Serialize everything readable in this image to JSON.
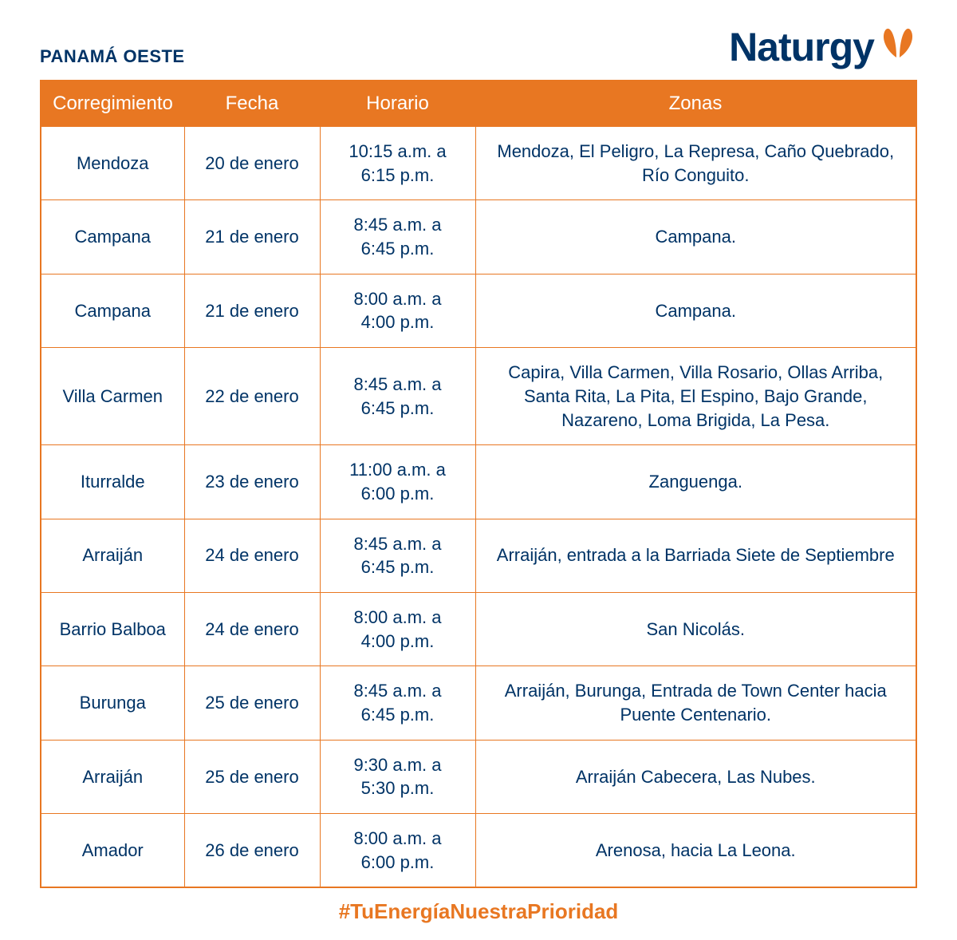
{
  "brand": {
    "name": "Naturgy",
    "text_color": "#003366",
    "icon_color": "#e87722"
  },
  "colors": {
    "header_bg": "#e87722",
    "header_text": "#ffffff",
    "border": "#e87722",
    "cell_text": "#003366",
    "hashtag": "#e87722"
  },
  "region_title": "PANAMÁ OESTE",
  "columns": [
    "Corregimiento",
    "Fecha",
    "Horario",
    "Zonas"
  ],
  "rows": [
    {
      "corr": "Mendoza",
      "fecha": "20 de enero",
      "horario": "10:15 a.m. a 6:15 p.m.",
      "zonas": "Mendoza, El Peligro, La Represa, Caño Quebrado, Río Conguito."
    },
    {
      "corr": "Campana",
      "fecha": "21 de enero",
      "horario": "8:45 a.m. a 6:45 p.m.",
      "zonas": "Campana."
    },
    {
      "corr": "Campana",
      "fecha": "21 de enero",
      "horario": "8:00 a.m. a 4:00 p.m.",
      "zonas": "Campana."
    },
    {
      "corr": "Villa Carmen",
      "fecha": "22 de enero",
      "horario": "8:45 a.m. a 6:45 p.m.",
      "zonas": "Capira, Villa Carmen, Villa Rosario, Ollas Arriba, Santa Rita, La Pita, El Espino, Bajo Grande, Nazareno, Loma Brigida, La Pesa."
    },
    {
      "corr": "Iturralde",
      "fecha": "23 de enero",
      "horario": "11:00 a.m. a 6:00 p.m.",
      "zonas": "Zanguenga."
    },
    {
      "corr": "Arraiján",
      "fecha": "24 de enero",
      "horario": "8:45 a.m. a 6:45 p.m.",
      "zonas": "Arraiján, entrada a la Barriada Siete de Septiembre"
    },
    {
      "corr": "Barrio Balboa",
      "fecha": "24 de enero",
      "horario": "8:00 a.m. a 4:00 p.m.",
      "zonas": "San Nicolás."
    },
    {
      "corr": "Burunga",
      "fecha": "25 de enero",
      "horario": "8:45 a.m. a 6:45 p.m.",
      "zonas": "Arraiján, Burunga, Entrada de Town Center hacia Puente Centenario."
    },
    {
      "corr": "Arraiján",
      "fecha": "25 de enero",
      "horario": "9:30 a.m. a 5:30 p.m.",
      "zonas": "Arraiján Cabecera, Las Nubes."
    },
    {
      "corr": "Amador",
      "fecha": "26 de enero",
      "horario": "8:00 a.m. a 6:00 p.m.",
      "zonas": "Arenosa, hacia La Leona."
    }
  ],
  "hashtag": "#TuEnergíaNuestraPrioridad"
}
